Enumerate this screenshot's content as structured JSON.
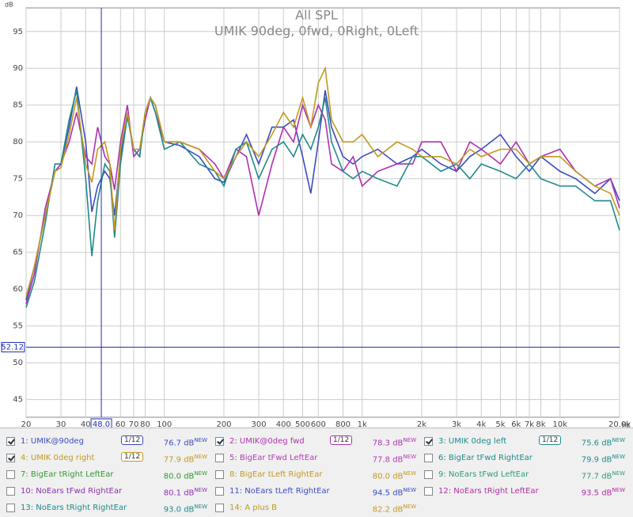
{
  "chart_data": {
    "type": "line",
    "title": "All SPL",
    "subtitle": "UMIK 90deg, 0fwd, 0Right, 0Left",
    "ylabel": "dB",
    "xlabel": "Hz",
    "xscale": "log",
    "grid": true,
    "xlim": [
      20,
      20000
    ],
    "ylim": [
      42.6,
      98.2
    ],
    "xticks": [
      20,
      30,
      40,
      60,
      70,
      80,
      100,
      200,
      300,
      400,
      500,
      600,
      800,
      {
        "value": 1000,
        "label": "1k"
      },
      {
        "value": 2000,
        "label": "2k"
      },
      {
        "value": 3000,
        "label": "3k"
      },
      {
        "value": 4000,
        "label": "4k"
      },
      {
        "value": 5000,
        "label": "5k"
      },
      {
        "value": 6000,
        "label": "6k"
      },
      {
        "value": 7000,
        "label": "7k"
      },
      {
        "value": 8000,
        "label": "8k"
      },
      {
        "value": 10000,
        "label": "10k"
      },
      {
        "value": 20000,
        "label": "20.0k"
      }
    ],
    "yticks": [
      45,
      50,
      55,
      60,
      65,
      70,
      75,
      80,
      85,
      90,
      95
    ],
    "cursor": {
      "x": {
        "value": 48,
        "label": "48.0"
      },
      "y": 52.12
    },
    "x": [
      20,
      22,
      25,
      28,
      30,
      33,
      36,
      40,
      43,
      46,
      50,
      53,
      56,
      60,
      65,
      70,
      75,
      80,
      85,
      90,
      100,
      120,
      150,
      180,
      200,
      230,
      260,
      300,
      350,
      400,
      450,
      500,
      550,
      600,
      650,
      700,
      800,
      900,
      1000,
      1200,
      1500,
      1800,
      2000,
      2500,
      3000,
      3500,
      4000,
      5000,
      6000,
      7000,
      8000,
      10000,
      12000,
      15000,
      18000,
      20000
    ],
    "series": [
      {
        "color": "#3c4cc0",
        "values": [
          58.5,
          63,
          70,
          76,
          77,
          82,
          87.5,
          80,
          70.5,
          74,
          76,
          75,
          70,
          78,
          83.5,
          79,
          78,
          84,
          86,
          85,
          80,
          79.5,
          78,
          75,
          74.5,
          78,
          81,
          77,
          82,
          82,
          83,
          78,
          73,
          80,
          87,
          82,
          78,
          77,
          78,
          79,
          77,
          78,
          79,
          77,
          76,
          78,
          79,
          81,
          78,
          76,
          78,
          76,
          75,
          73,
          75,
          72
        ]
      },
      {
        "color": "#b030b0",
        "values": [
          58,
          62,
          71,
          76,
          77,
          80,
          84,
          78,
          77,
          82,
          78,
          77,
          73.5,
          80,
          85,
          78,
          79,
          83,
          86,
          84,
          80,
          80,
          79,
          77,
          75,
          79,
          78,
          70,
          77,
          82,
          80,
          85,
          82,
          85,
          83,
          77,
          76,
          78,
          74,
          76,
          77,
          77,
          80,
          80,
          76,
          80,
          79,
          77,
          80,
          77,
          78,
          79,
          76,
          74,
          75,
          71
        ]
      },
      {
        "color": "#1f8a8c",
        "values": [
          57.5,
          61,
          69,
          77,
          77,
          83,
          87,
          75,
          64.5,
          72,
          77,
          76,
          67,
          77,
          83.5,
          79,
          78,
          84,
          86,
          84,
          79,
          80,
          77,
          76,
          74,
          79,
          80,
          75,
          79,
          80,
          78,
          81,
          79,
          82,
          86,
          80,
          76,
          75,
          76,
          75,
          74,
          78,
          78,
          76,
          77,
          75,
          77,
          76,
          75,
          77,
          75,
          74,
          74,
          72,
          72,
          68
        ]
      },
      {
        "color": "#c09a20",
        "values": [
          59,
          63,
          70,
          76,
          76.5,
          81,
          86,
          77,
          74.5,
          79,
          80,
          77,
          68,
          79,
          84,
          79,
          79,
          84,
          86,
          85,
          80,
          80,
          79,
          76,
          75,
          78,
          80,
          78,
          81,
          84,
          82,
          86,
          82,
          88,
          90,
          83,
          80,
          80,
          81,
          78,
          80,
          79,
          78,
          78,
          77,
          79,
          78,
          79,
          79,
          77,
          78,
          78,
          76,
          74,
          73,
          70
        ]
      }
    ]
  },
  "traces": [
    {
      "label": "1: UMIK@90deg",
      "checked": true,
      "smoothing": "1/12",
      "level": "76.7 dB",
      "badge": "NEW",
      "color": "#3c4cc0"
    },
    {
      "label": "2: UMIK@0deg fwd",
      "checked": true,
      "smoothing": "1/12",
      "level": "78.3 dB",
      "badge": "NEW",
      "color": "#b030b0"
    },
    {
      "label": "3: UMIK 0deg left",
      "checked": true,
      "smoothing": "1/12",
      "level": "75.6 dB",
      "badge": "NEW",
      "color": "#1f8a8c"
    },
    {
      "label": "4: UMIK 0deg right",
      "checked": true,
      "smoothing": "1/12",
      "level": "77.9 dB",
      "badge": "NEW",
      "color": "#c09a20"
    },
    {
      "label": "5: BigEar tFwd LeftEar",
      "checked": false,
      "level": "77.8 dB",
      "badge": "NEW",
      "color": "#b040b0"
    },
    {
      "label": "6: BigEar tFwd RightEar",
      "checked": false,
      "level": "79.9 dB",
      "badge": "NEW",
      "color": "#1f8a8c"
    },
    {
      "label": "7: BigEar tRight LeftEar",
      "checked": false,
      "level": "80.0 dB",
      "badge": "NEW",
      "color": "#2f9a2f"
    },
    {
      "label": "8: BigEar tLeft RightEar",
      "checked": false,
      "level": "80.0 dB",
      "badge": "NEW",
      "color": "#c09a20"
    },
    {
      "label": "9: NoEars tFwd LeftEar",
      "checked": false,
      "level": "77.7 dB",
      "badge": "NEW",
      "color": "#2f9a7a"
    },
    {
      "label": "10: NoEars tFwd RightEar",
      "checked": false,
      "level": "80.1 dB",
      "badge": "NEW",
      "color": "#9030b0"
    },
    {
      "label": "11: NoEars tLeft RightEar",
      "checked": false,
      "level": "94.5 dB",
      "badge": "NEW",
      "color": "#3c4cc0"
    },
    {
      "label": "12: NoEars tRight LeftEar",
      "checked": false,
      "level": "93.5 dB",
      "badge": "NEW",
      "color": "#b030a0"
    },
    {
      "label": "13: NoEars tRight RightEar",
      "checked": false,
      "level": "93.0 dB",
      "badge": "NEW",
      "color": "#1f8a8c"
    },
    {
      "label": "14: A plus B",
      "checked": false,
      "level": "82.2 dB",
      "badge": "NEW",
      "color": "#c09a20"
    }
  ]
}
